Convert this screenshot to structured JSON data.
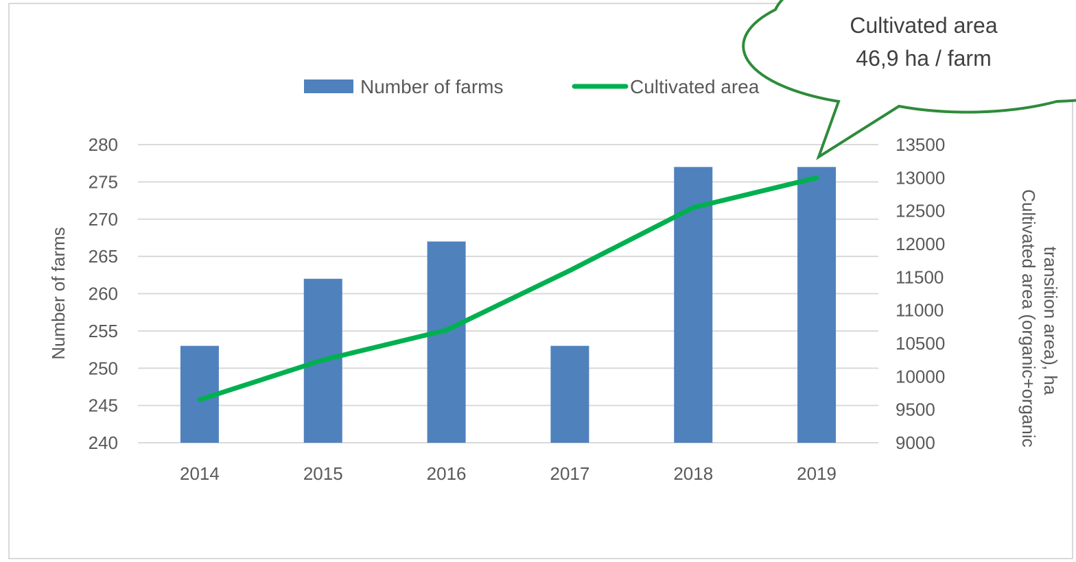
{
  "chart_data": {
    "type": "bar",
    "categories": [
      "2014",
      "2015",
      "2016",
      "2017",
      "2018",
      "2019"
    ],
    "series": [
      {
        "name": "Number of farms",
        "type": "bar",
        "axis": "left",
        "color": "#4f81bd",
        "values": [
          253,
          262,
          267,
          253,
          277,
          277
        ]
      },
      {
        "name": "Cultivated area",
        "type": "line",
        "axis": "right",
        "color": "#00b050",
        "values": [
          9650,
          10250,
          10700,
          11600,
          12550,
          13000
        ]
      }
    ],
    "ylabel": "Number of farms",
    "y2label": "Cultivated area (organic+organic transition area), ha",
    "ylim": [
      240,
      280
    ],
    "y2lim": [
      9000,
      13500
    ],
    "yticks": [
      "240",
      "245",
      "250",
      "255",
      "260",
      "265",
      "270",
      "275",
      "280"
    ],
    "y2ticks": [
      "9000",
      "9500",
      "10000",
      "10500",
      "11000",
      "11500",
      "12000",
      "12500",
      "13000",
      "13500"
    ],
    "grid": true,
    "legend_position": "top-center",
    "annotation": {
      "line1": "Cultivated area",
      "line2": "46,9 ha / farm",
      "target_category": "2019",
      "border_color": "#2e8b3a"
    }
  }
}
